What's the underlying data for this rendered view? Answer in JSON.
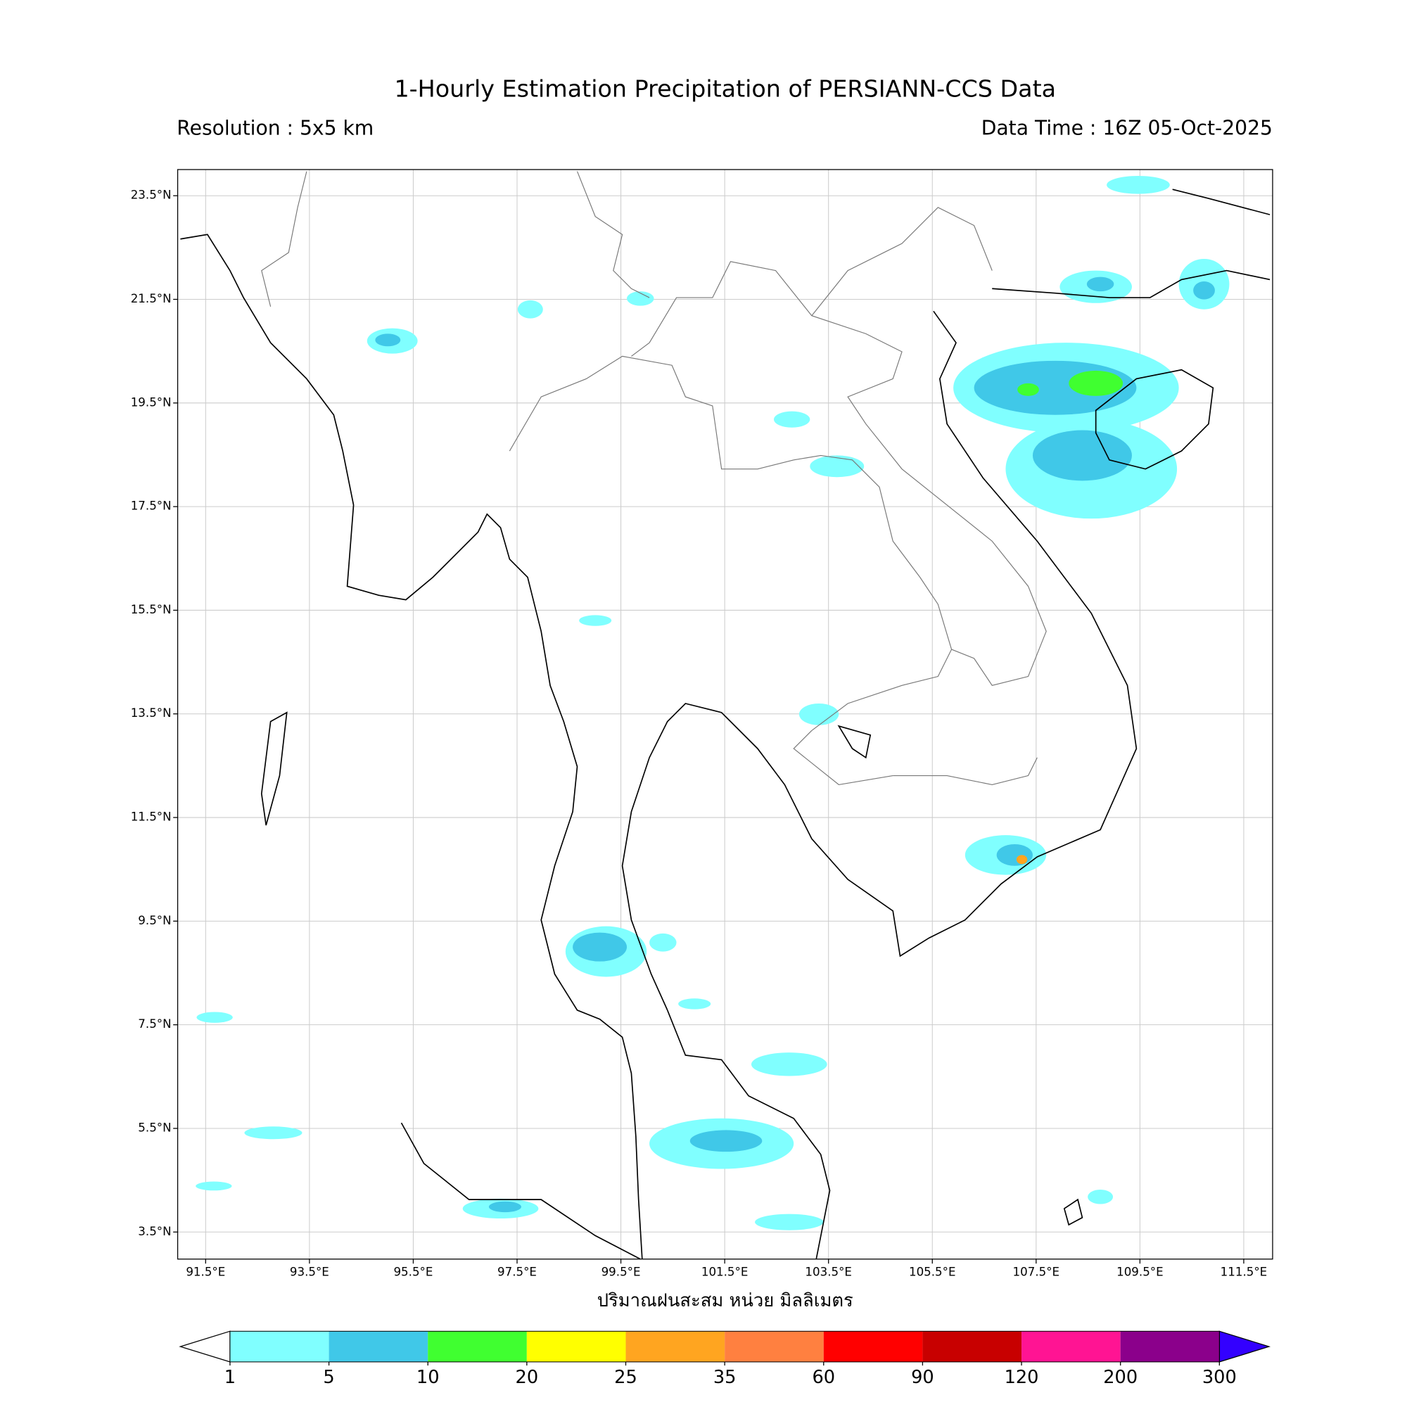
{
  "map": {
    "title": "1-Hourly Estimation Precipitation of PERSIANN-CCS Data",
    "resolution": "Resolution : 5x5 km",
    "data_time": "Data Time : 16Z 05-Oct-2025",
    "lat_ticks": [
      {
        "value": 23.5,
        "label": "23.5°N"
      },
      {
        "value": 21.5,
        "label": "21.5°N"
      },
      {
        "value": 19.5,
        "label": "19.5°N"
      },
      {
        "value": 17.5,
        "label": "17.5°N"
      },
      {
        "value": 15.5,
        "label": "15.5°N"
      },
      {
        "value": 13.5,
        "label": "13.5°N"
      },
      {
        "value": 11.5,
        "label": "11.5°N"
      },
      {
        "value": 9.5,
        "label": "9.5°N"
      },
      {
        "value": 7.5,
        "label": "7.5°N"
      },
      {
        "value": 5.5,
        "label": "5.5°N"
      },
      {
        "value": 3.5,
        "label": "3.5°N"
      }
    ],
    "lon_ticks": [
      {
        "value": 91.5,
        "label": "91.5°E"
      },
      {
        "value": 93.5,
        "label": "93.5°E"
      },
      {
        "value": 95.5,
        "label": "95.5°E"
      },
      {
        "value": 97.5,
        "label": "97.5°E"
      },
      {
        "value": 99.5,
        "label": "99.5°E"
      },
      {
        "value": 101.5,
        "label": "101.5°E"
      },
      {
        "value": 103.5,
        "label": "103.5°E"
      },
      {
        "value": 105.5,
        "label": "105.5°E"
      },
      {
        "value": 107.5,
        "label": "107.5°E"
      },
      {
        "value": 109.5,
        "label": "109.5°E"
      },
      {
        "value": 111.5,
        "label": "111.5°E"
      }
    ],
    "axis_label": "ปริมาณฝนสะสม หน่วย มิลลิเมตร",
    "colorbar": {
      "levels": [
        1,
        5,
        10,
        20,
        25,
        35,
        60,
        90,
        120,
        200,
        300
      ],
      "colors": [
        "#80ffff",
        "#40c8e8",
        "#40ff30",
        "#ffff00",
        "#ffa520",
        "#ff8040",
        "#ff0000",
        "#c80000",
        "#ff1493",
        "#8b008b"
      ],
      "under_color": "#ffffff",
      "over_color": "#3300ff"
    }
  }
}
